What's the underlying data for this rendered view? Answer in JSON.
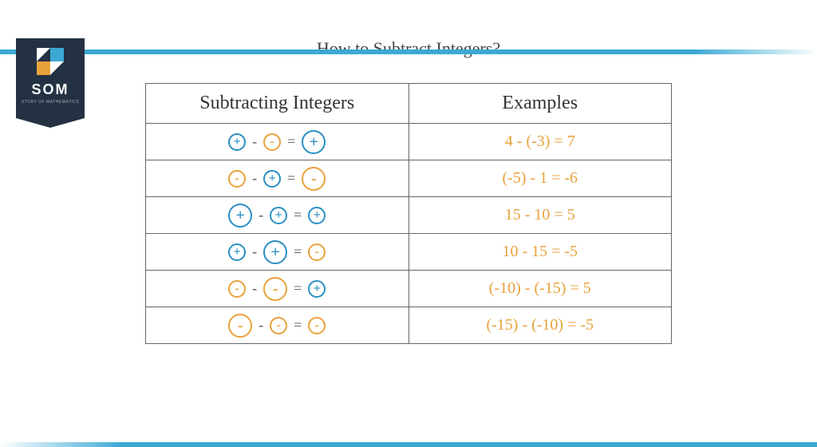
{
  "brand": {
    "name": "SOM",
    "tagline": "STORY OF MATHEMATICS",
    "bar_color": "#3ba9d4",
    "badge_color": "#233142"
  },
  "title": "How to Subtract Integers?",
  "table": {
    "headers": {
      "rule": "Subtracting Integers",
      "example": "Examples"
    },
    "colors": {
      "blue": "#2b8fc2",
      "orange": "#e8a23b"
    },
    "rows": [
      {
        "rule": {
          "a": {
            "sign": "+",
            "color": "blue",
            "size": "small"
          },
          "b": {
            "sign": "-",
            "color": "orange",
            "size": "small"
          },
          "r": {
            "sign": "+",
            "color": "blue",
            "size": "big"
          }
        },
        "example": "4 - (-3) = 7"
      },
      {
        "rule": {
          "a": {
            "sign": "-",
            "color": "orange",
            "size": "small"
          },
          "b": {
            "sign": "+",
            "color": "blue",
            "size": "small"
          },
          "r": {
            "sign": "-",
            "color": "orange",
            "size": "big"
          }
        },
        "example": "(-5) - 1 = -6"
      },
      {
        "rule": {
          "a": {
            "sign": "+",
            "color": "blue",
            "size": "big"
          },
          "b": {
            "sign": "+",
            "color": "blue",
            "size": "small"
          },
          "r": {
            "sign": "+",
            "color": "blue",
            "size": "small"
          }
        },
        "example": "15 - 10 = 5"
      },
      {
        "rule": {
          "a": {
            "sign": "+",
            "color": "blue",
            "size": "small"
          },
          "b": {
            "sign": "+",
            "color": "blue",
            "size": "big"
          },
          "r": {
            "sign": "-",
            "color": "orange",
            "size": "small"
          }
        },
        "example": "10 - 15 = -5"
      },
      {
        "rule": {
          "a": {
            "sign": "-",
            "color": "orange",
            "size": "small"
          },
          "b": {
            "sign": "-",
            "color": "orange",
            "size": "big"
          },
          "r": {
            "sign": "+",
            "color": "blue",
            "size": "small"
          }
        },
        "example": "(-10) - (-15) = 5"
      },
      {
        "rule": {
          "a": {
            "sign": "-",
            "color": "orange",
            "size": "big"
          },
          "b": {
            "sign": "-",
            "color": "orange",
            "size": "small"
          },
          "r": {
            "sign": "-",
            "color": "orange",
            "size": "small"
          }
        },
        "example": "(-15) - (-10) = -5"
      }
    ]
  }
}
